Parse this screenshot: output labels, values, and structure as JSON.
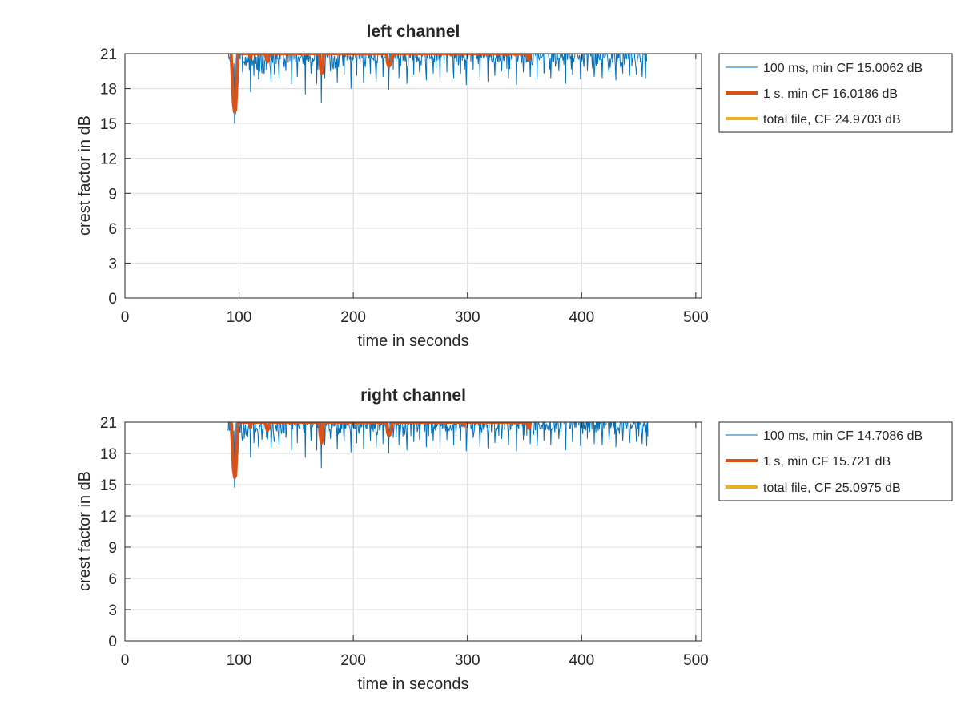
{
  "chart_data": [
    {
      "type": "line",
      "title": "left channel",
      "xlabel": "time in seconds",
      "ylabel": "crest factor in dB",
      "xlim": [
        0,
        505
      ],
      "ylim": [
        0,
        21
      ],
      "xticks": [
        0,
        100,
        200,
        300,
        400,
        500
      ],
      "yticks": [
        0,
        3,
        6,
        9,
        12,
        15,
        18,
        21
      ],
      "grid": true,
      "legend_position": "outside-right",
      "series": [
        {
          "name": "100 ms, min CF 15.0062 dB",
          "color": "#0072BD",
          "data_range_x": [
            90,
            457
          ],
          "dips": [
            [
              92,
              20.4
            ],
            [
              95,
              17.0
            ],
            [
              96,
              15.0
            ],
            [
              97,
              15.8
            ],
            [
              99,
              18.2
            ],
            [
              103,
              19.4
            ],
            [
              106,
              19.9
            ],
            [
              110,
              17.7
            ],
            [
              113,
              19.1
            ],
            [
              117,
              18.8
            ],
            [
              120,
              19.3
            ],
            [
              124,
              19.6
            ],
            [
              128,
              18.6
            ],
            [
              131,
              19.2
            ],
            [
              135,
              18.9
            ],
            [
              141,
              19.5
            ],
            [
              146,
              18.4
            ],
            [
              151,
              19.0
            ],
            [
              158,
              17.5
            ],
            [
              163,
              19.3
            ],
            [
              168,
              18.4
            ],
            [
              172,
              16.8
            ],
            [
              175,
              18.9
            ],
            [
              180,
              19.5
            ],
            [
              186,
              18.5
            ],
            [
              192,
              19.2
            ],
            [
              198,
              18.0
            ],
            [
              203,
              19.1
            ],
            [
              209,
              18.5
            ],
            [
              215,
              19.3
            ],
            [
              220,
              18.6
            ],
            [
              226,
              19.0
            ],
            [
              231,
              17.9
            ],
            [
              235,
              19.6
            ],
            [
              240,
              18.9
            ],
            [
              247,
              18.4
            ],
            [
              253,
              19.2
            ],
            [
              258,
              19.4
            ],
            [
              264,
              18.7
            ],
            [
              270,
              19.3
            ],
            [
              276,
              18.5
            ],
            [
              282,
              19.4
            ],
            [
              288,
              18.9
            ],
            [
              294,
              19.3
            ],
            [
              299,
              18.3
            ],
            [
              305,
              19.6
            ],
            [
              311,
              18.7
            ],
            [
              318,
              18.6
            ],
            [
              324,
              19.1
            ],
            [
              330,
              19.5
            ],
            [
              336,
              18.9
            ],
            [
              343,
              18.3
            ],
            [
              349,
              19.4
            ],
            [
              355,
              19.0
            ],
            [
              361,
              18.8
            ],
            [
              367,
              19.3
            ],
            [
              373,
              18.9
            ],
            [
              380,
              19.5
            ],
            [
              386,
              18.4
            ],
            [
              392,
              19.2
            ],
            [
              399,
              18.8
            ],
            [
              405,
              19.5
            ],
            [
              411,
              19.0
            ],
            [
              418,
              18.9
            ],
            [
              424,
              19.4
            ],
            [
              430,
              18.7
            ],
            [
              436,
              19.3
            ],
            [
              442,
              19.1
            ],
            [
              448,
              19.2
            ],
            [
              453,
              19.0
            ],
            [
              456,
              18.9
            ]
          ]
        },
        {
          "name": "1 s, min CF 16.0186 dB",
          "color": "#D95319",
          "dips": [
            [
              93,
              21.0
            ],
            [
              94,
              19.0
            ],
            [
              95,
              16.8
            ],
            [
              96,
              16.0
            ],
            [
              97,
              16.2
            ],
            [
              98,
              18.3
            ],
            [
              99,
              21.0
            ],
            [
              109,
              21.0
            ],
            [
              110,
              20.6
            ],
            [
              111,
              21.0
            ],
            [
              123,
              21.0
            ],
            [
              124,
              20.5
            ],
            [
              125,
              20.3
            ],
            [
              126,
              20.7
            ],
            [
              127,
              21.0
            ],
            [
              170,
              21.0
            ],
            [
              171,
              20.0
            ],
            [
              172,
              19.3
            ],
            [
              173,
              19.4
            ],
            [
              174,
              21.0
            ],
            [
              229,
              21.0
            ],
            [
              230,
              20.2
            ],
            [
              231,
              19.9
            ],
            [
              232,
              20.0
            ],
            [
              233,
              20.2
            ],
            [
              234,
              21.0
            ],
            [
              352,
              21.0
            ],
            [
              353,
              20.6
            ],
            [
              354,
              20.5
            ],
            [
              355,
              21.0
            ]
          ]
        },
        {
          "name": "total file, CF 24.9703 dB",
          "color": "#EDB120",
          "value": 24.9703
        }
      ]
    },
    {
      "type": "line",
      "title": "right channel",
      "xlabel": "time in seconds",
      "ylabel": "crest factor in dB",
      "xlim": [
        0,
        505
      ],
      "ylim": [
        0,
        21
      ],
      "xticks": [
        0,
        100,
        200,
        300,
        400,
        500
      ],
      "yticks": [
        0,
        3,
        6,
        9,
        12,
        15,
        18,
        21
      ],
      "grid": true,
      "legend_position": "outside-right",
      "series": [
        {
          "name": "100 ms, min CF 14.7086 dB",
          "color": "#0072BD",
          "data_range_x": [
            90,
            458
          ],
          "dips": [
            [
              92,
              20.3
            ],
            [
              95,
              16.8
            ],
            [
              96,
              14.7
            ],
            [
              97,
              15.6
            ],
            [
              99,
              18.0
            ],
            [
              103,
              19.2
            ],
            [
              106,
              19.8
            ],
            [
              110,
              17.6
            ],
            [
              113,
              19.0
            ],
            [
              117,
              18.6
            ],
            [
              120,
              19.3
            ],
            [
              124,
              19.5
            ],
            [
              128,
              18.5
            ],
            [
              131,
              19.1
            ],
            [
              135,
              18.8
            ],
            [
              141,
              19.5
            ],
            [
              146,
              18.3
            ],
            [
              151,
              19.0
            ],
            [
              158,
              17.6
            ],
            [
              163,
              19.2
            ],
            [
              168,
              18.3
            ],
            [
              172,
              16.6
            ],
            [
              175,
              18.8
            ],
            [
              180,
              19.4
            ],
            [
              186,
              18.4
            ],
            [
              192,
              19.1
            ],
            [
              198,
              18.1
            ],
            [
              203,
              19.0
            ],
            [
              209,
              18.4
            ],
            [
              215,
              19.2
            ],
            [
              220,
              18.5
            ],
            [
              226,
              18.9
            ],
            [
              231,
              18.0
            ],
            [
              235,
              19.5
            ],
            [
              240,
              18.8
            ],
            [
              247,
              18.3
            ],
            [
              253,
              19.1
            ],
            [
              258,
              19.3
            ],
            [
              264,
              18.6
            ],
            [
              270,
              19.2
            ],
            [
              276,
              18.4
            ],
            [
              282,
              19.3
            ],
            [
              288,
              18.8
            ],
            [
              294,
              19.2
            ],
            [
              299,
              18.2
            ],
            [
              305,
              19.5
            ],
            [
              311,
              18.6
            ],
            [
              318,
              18.5
            ],
            [
              324,
              19.0
            ],
            [
              330,
              19.4
            ],
            [
              336,
              18.8
            ],
            [
              343,
              18.2
            ],
            [
              349,
              19.3
            ],
            [
              355,
              18.9
            ],
            [
              361,
              18.7
            ],
            [
              367,
              19.2
            ],
            [
              373,
              18.8
            ],
            [
              380,
              19.4
            ],
            [
              386,
              18.3
            ],
            [
              392,
              19.1
            ],
            [
              399,
              18.7
            ],
            [
              405,
              19.4
            ],
            [
              411,
              18.9
            ],
            [
              418,
              18.8
            ],
            [
              424,
              19.3
            ],
            [
              430,
              18.6
            ],
            [
              436,
              19.2
            ],
            [
              442,
              19.0
            ],
            [
              448,
              19.1
            ],
            [
              453,
              18.9
            ],
            [
              457,
              18.7
            ]
          ]
        },
        {
          "name": "1 s, min CF 15.721 dB",
          "color": "#D95319",
          "dips": [
            [
              93,
              21.0
            ],
            [
              94,
              19.0
            ],
            [
              95,
              16.6
            ],
            [
              96,
              15.72
            ],
            [
              97,
              15.9
            ],
            [
              98,
              18.2
            ],
            [
              99,
              21.0
            ],
            [
              109,
              21.0
            ],
            [
              110,
              20.5
            ],
            [
              111,
              21.0
            ],
            [
              123,
              21.0
            ],
            [
              124,
              20.4
            ],
            [
              125,
              20.2
            ],
            [
              126,
              20.6
            ],
            [
              127,
              21.0
            ],
            [
              170,
              21.0
            ],
            [
              171,
              19.8
            ],
            [
              172,
              19.0
            ],
            [
              173,
              19.2
            ],
            [
              174,
              21.0
            ],
            [
              229,
              21.0
            ],
            [
              230,
              20.0
            ],
            [
              231,
              19.7
            ],
            [
              232,
              19.8
            ],
            [
              233,
              20.1
            ],
            [
              234,
              21.0
            ],
            [
              296,
              21.0
            ],
            [
              297,
              20.7
            ],
            [
              298,
              21.0
            ],
            [
              352,
              21.0
            ],
            [
              353,
              20.5
            ],
            [
              354,
              20.4
            ],
            [
              355,
              21.0
            ]
          ]
        },
        {
          "name": "total file, CF 25.0975 dB",
          "color": "#EDB120",
          "value": 25.0975
        }
      ]
    }
  ]
}
